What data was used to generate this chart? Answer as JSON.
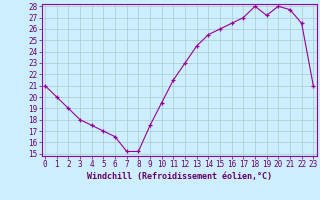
{
  "x": [
    0,
    1,
    2,
    3,
    4,
    5,
    6,
    7,
    8,
    9,
    10,
    11,
    12,
    13,
    14,
    15,
    16,
    17,
    18,
    19,
    20,
    21,
    22,
    23
  ],
  "y": [
    21,
    20,
    19,
    18,
    17.5,
    17,
    16.5,
    15.2,
    15.2,
    17.5,
    19.5,
    21.5,
    23,
    24.5,
    25.5,
    26,
    26.5,
    27,
    28,
    27.2,
    28,
    27.7,
    26.5,
    21
  ],
  "ylim_min": 15,
  "ylim_max": 28,
  "xlim_min": 0,
  "xlim_max": 23,
  "yticks": [
    15,
    16,
    17,
    18,
    19,
    20,
    21,
    22,
    23,
    24,
    25,
    26,
    27,
    28
  ],
  "xticks": [
    0,
    1,
    2,
    3,
    4,
    5,
    6,
    7,
    8,
    9,
    10,
    11,
    12,
    13,
    14,
    15,
    16,
    17,
    18,
    19,
    20,
    21,
    22,
    23
  ],
  "xlabel": "Windchill (Refroidissement éolien,°C)",
  "line_color": "#990099",
  "marker": "+",
  "bg_color": "#cceeff",
  "grid_color": "#aacccc",
  "tick_color": "#660066",
  "label_color": "#660066",
  "axis_fontsize": 5.5,
  "xlabel_fontsize": 6.0
}
